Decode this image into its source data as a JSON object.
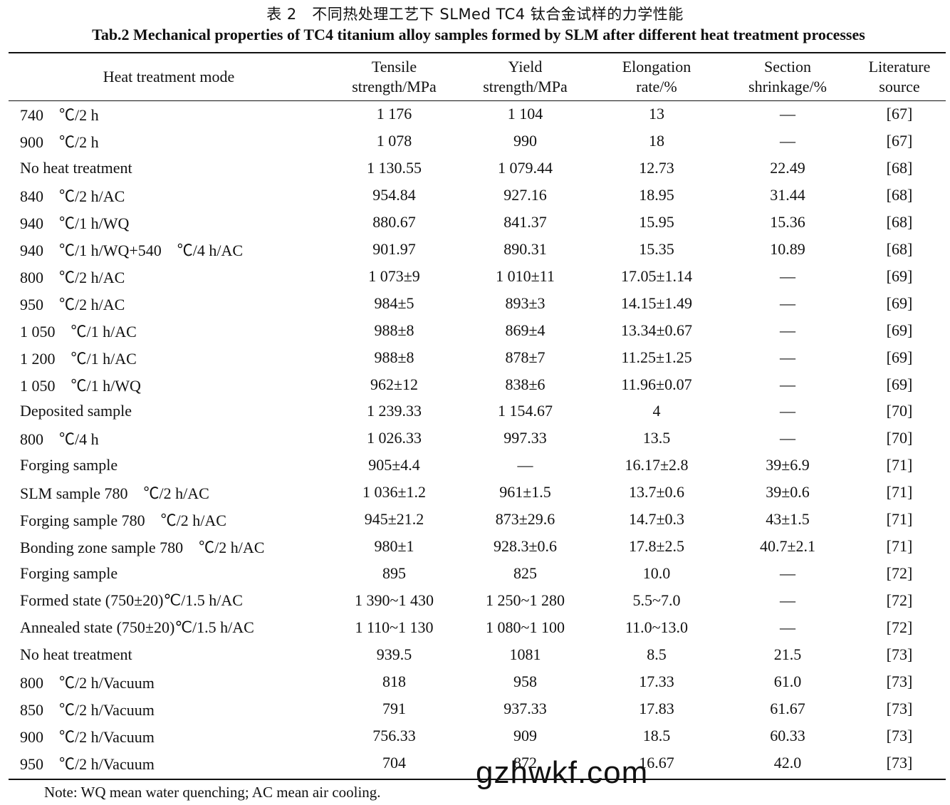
{
  "caption": {
    "title_cn": "表 2　不同热处理工艺下 SLMed TC4 钛合金试样的力学性能",
    "title_en": "Tab.2 Mechanical properties of TC4 titanium alloy samples formed by SLM after different heat treatment processes"
  },
  "table": {
    "headers": [
      [
        "Heat treatment mode"
      ],
      [
        "Tensile",
        "strength/MPa"
      ],
      [
        "Yield",
        "strength/MPa"
      ],
      [
        "Elongation",
        "rate/%"
      ],
      [
        "Section",
        "shrinkage/%"
      ],
      [
        "Literature",
        "source"
      ]
    ],
    "rows": [
      [
        "740　℃/2 h",
        "1 176",
        "1 104",
        "13",
        "—",
        "[67]"
      ],
      [
        "900　℃/2 h",
        "1 078",
        "990",
        "18",
        "—",
        "[67]"
      ],
      [
        "No heat treatment",
        "1 130.55",
        "1 079.44",
        "12.73",
        "22.49",
        "[68]"
      ],
      [
        "840　℃/2 h/AC",
        "954.84",
        "927.16",
        "18.95",
        "31.44",
        "[68]"
      ],
      [
        "940　℃/1 h/WQ",
        "880.67",
        "841.37",
        "15.95",
        "15.36",
        "[68]"
      ],
      [
        "940　℃/1 h/WQ+540　℃/4 h/AC",
        "901.97",
        "890.31",
        "15.35",
        "10.89",
        "[68]"
      ],
      [
        "800　℃/2 h/AC",
        "1 073±9",
        "1 010±11",
        "17.05±1.14",
        "—",
        "[69]"
      ],
      [
        "950　℃/2 h/AC",
        "984±5",
        "893±3",
        "14.15±1.49",
        "—",
        "[69]"
      ],
      [
        "1 050　℃/1 h/AC",
        "988±8",
        "869±4",
        "13.34±0.67",
        "—",
        "[69]"
      ],
      [
        "1 200　℃/1 h/AC",
        "988±8",
        "878±7",
        "11.25±1.25",
        "—",
        "[69]"
      ],
      [
        "1 050　℃/1 h/WQ",
        "962±12",
        "838±6",
        "11.96±0.07",
        "—",
        "[69]"
      ],
      [
        "Deposited sample",
        "1 239.33",
        "1 154.67",
        "4",
        "—",
        "[70]"
      ],
      [
        "800　℃/4 h",
        "1 026.33",
        "997.33",
        "13.5",
        "—",
        "[70]"
      ],
      [
        "Forging sample",
        "905±4.4",
        "—",
        "16.17±2.8",
        "39±6.9",
        "[71]"
      ],
      [
        "SLM sample 780　℃/2 h/AC",
        "1 036±1.2",
        "961±1.5",
        "13.7±0.6",
        "39±0.6",
        "[71]"
      ],
      [
        "Forging sample 780　℃/2 h/AC",
        "945±21.2",
        "873±29.6",
        "14.7±0.3",
        "43±1.5",
        "[71]"
      ],
      [
        "Bonding zone sample 780　℃/2 h/AC",
        "980±1",
        "928.3±0.6",
        "17.8±2.5",
        "40.7±2.1",
        "[71]"
      ],
      [
        "Forging sample",
        "895",
        "825",
        "10.0",
        "—",
        "[72]"
      ],
      [
        "Formed state (750±20)℃/1.5 h/AC",
        "1 390~1 430",
        "1 250~1 280",
        "5.5~7.0",
        "—",
        "[72]"
      ],
      [
        "Annealed state (750±20)℃/1.5 h/AC",
        "1 110~1 130",
        "1 080~1 100",
        "11.0~13.0",
        "—",
        "[72]"
      ],
      [
        "No heat treatment",
        "939.5",
        "1081",
        "8.5",
        "21.5",
        "[73]"
      ],
      [
        "800　℃/2 h/Vacuum",
        "818",
        "958",
        "17.33",
        "61.0",
        "[73]"
      ],
      [
        "850　℃/2 h/Vacuum",
        "791",
        "937.33",
        "17.83",
        "61.67",
        "[73]"
      ],
      [
        "900　℃/2 h/Vacuum",
        "756.33",
        "909",
        "18.5",
        "60.33",
        "[73]"
      ],
      [
        "950　℃/2 h/Vacuum",
        "704",
        "872",
        "16.67",
        "42.0",
        "[73]"
      ]
    ]
  },
  "note": "Note: WQ mean water quenching; AC mean air cooling.",
  "watermark": "gzhwkf.com"
}
